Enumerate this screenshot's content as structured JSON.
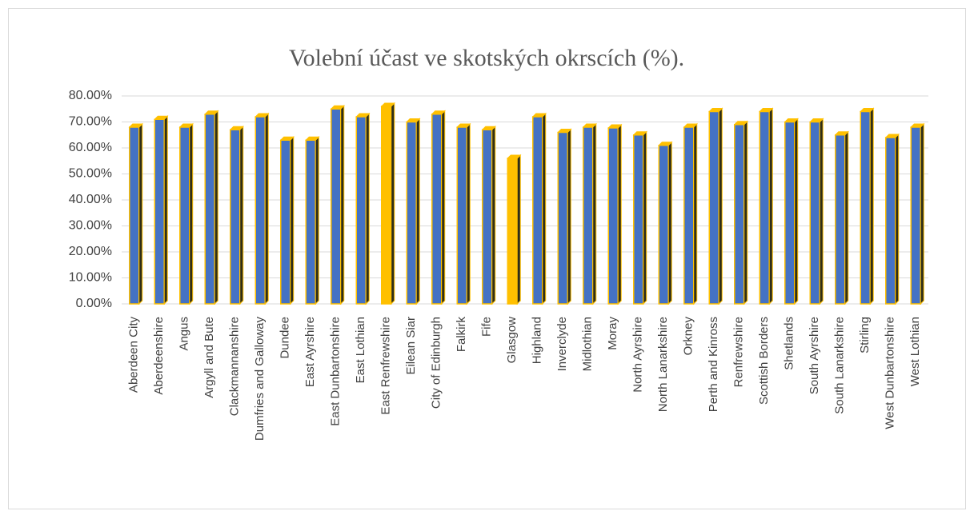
{
  "chart_data": {
    "type": "bar",
    "title": "Volební účast ve skotských okrscích (%).",
    "categories": [
      "Aberdeen City",
      "Aberdeenshire",
      "Angus",
      "Argyll and Bute",
      "Clackmannanshire",
      "Dumfries and Galloway",
      "Dundee",
      "East Ayrshire",
      "East Dunbartonshire",
      "East Lothian",
      "East Renfrewshire",
      "Eilean Siar",
      "City of Edinburgh",
      "Falkirk",
      "Fife",
      "Glasgow",
      "Highland",
      "Inverclyde",
      "Midlothian",
      "Moray",
      "North Ayrshire",
      "North Lanarkshire",
      "Orkney",
      "Perth and Kinross",
      "Renfrewshire",
      "Scottish Borders",
      "Shetlands",
      "South Ayrshire",
      "South Lanarkshire",
      "Stirling",
      "West Dunbartonshire",
      "West Lothian"
    ],
    "values": [
      68,
      71,
      68,
      73,
      67,
      72,
      63,
      63,
      75,
      72,
      76,
      70,
      73,
      68,
      67,
      56,
      72,
      66,
      68,
      67.7,
      65,
      61,
      68,
      74,
      69,
      74,
      70,
      70,
      65,
      74,
      64,
      68
    ],
    "colors": [
      "#4472c4",
      "#4472c4",
      "#4472c4",
      "#4472c4",
      "#4472c4",
      "#4472c4",
      "#4472c4",
      "#4472c4",
      "#4472c4",
      "#4472c4",
      "#ffc000",
      "#4472c4",
      "#4472c4",
      "#4472c4",
      "#4472c4",
      "#ffc000",
      "#4472c4",
      "#4472c4",
      "#4472c4",
      "#4472c4",
      "#4472c4",
      "#4472c4",
      "#4472c4",
      "#4472c4",
      "#4472c4",
      "#4472c4",
      "#4472c4",
      "#4472c4",
      "#4472c4",
      "#4472c4",
      "#4472c4",
      "#4472c4"
    ],
    "edge_color": "#ffc000",
    "ylim": [
      0,
      80
    ],
    "yticks": [
      {
        "value": 0,
        "label": "0.00%"
      },
      {
        "value": 10,
        "label": "10.00%"
      },
      {
        "value": 20,
        "label": "20.00%"
      },
      {
        "value": 30,
        "label": "30.00%"
      },
      {
        "value": 40,
        "label": "40.00%"
      },
      {
        "value": 50,
        "label": "50.00%"
      },
      {
        "value": 60,
        "label": "60.00%"
      },
      {
        "value": 70,
        "label": "70.00%"
      },
      {
        "value": 80,
        "label": "80.00%"
      }
    ],
    "grid": true
  }
}
